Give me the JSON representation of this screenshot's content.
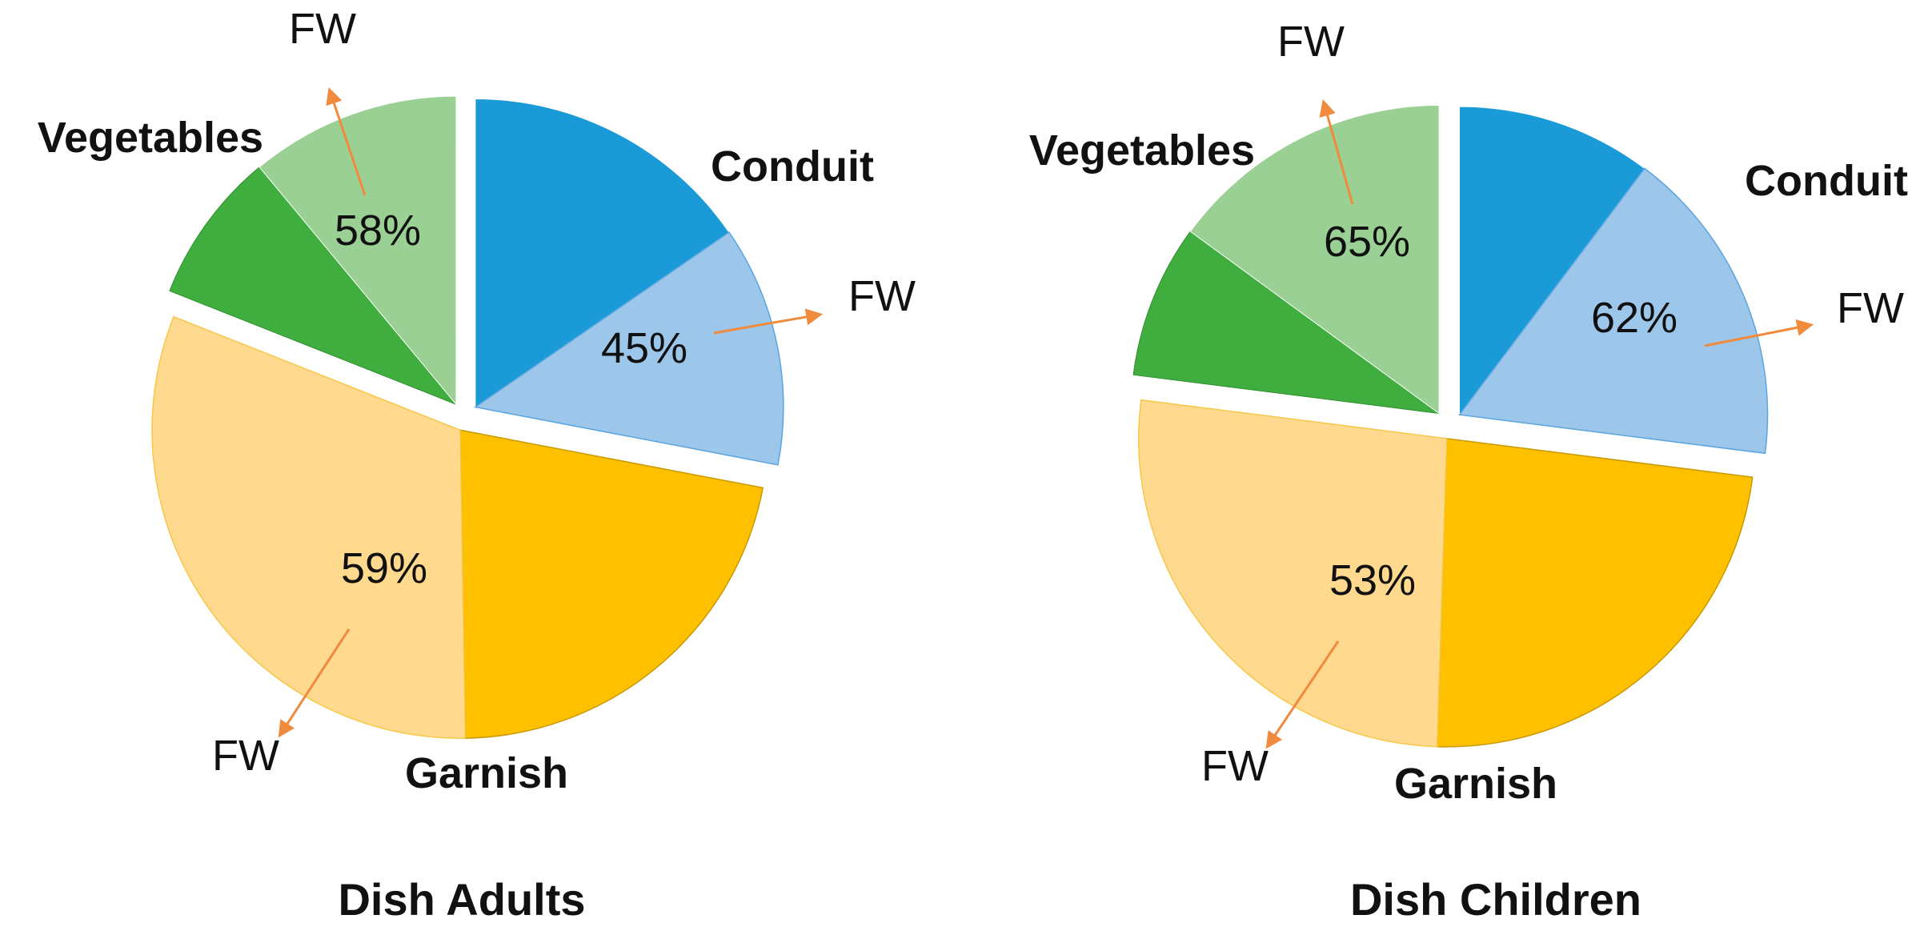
{
  "chart_data": [
    {
      "type": "pie",
      "title": "Dish Adults",
      "segments": [
        {
          "name": "Conduit",
          "total_pct": 28,
          "fw_pct": 45,
          "fw_label": "45%",
          "color_main": "#1a9ad6",
          "color_fw": "#9cc6ea"
        },
        {
          "name": "Garnish",
          "total_pct": 53,
          "fw_pct": 59,
          "fw_label": "59%",
          "color_main": "#ffc000",
          "color_fw": "#ffd98e"
        },
        {
          "name": "Vegetables",
          "total_pct": 19,
          "fw_pct": 58,
          "fw_label": "58%",
          "color_main": "#3fae3f",
          "color_fw": "#9bd094"
        }
      ],
      "fw_marker": "FW"
    },
    {
      "type": "pie",
      "title": "Dish Children",
      "segments": [
        {
          "name": "Conduit",
          "total_pct": 27,
          "fw_pct": 62,
          "fw_label": "62%",
          "color_main": "#1a9ad6",
          "color_fw": "#9cc6ea"
        },
        {
          "name": "Garnish",
          "total_pct": 50,
          "fw_pct": 53,
          "fw_label": "53%",
          "color_main": "#ffc000",
          "color_fw": "#ffd98e"
        },
        {
          "name": "Vegetables",
          "total_pct": 23,
          "fw_pct": 65,
          "fw_label": "65%",
          "color_main": "#3fae3f",
          "color_fw": "#9bd094"
        }
      ],
      "fw_marker": "FW"
    }
  ],
  "arrow_color": "#f08a3c"
}
